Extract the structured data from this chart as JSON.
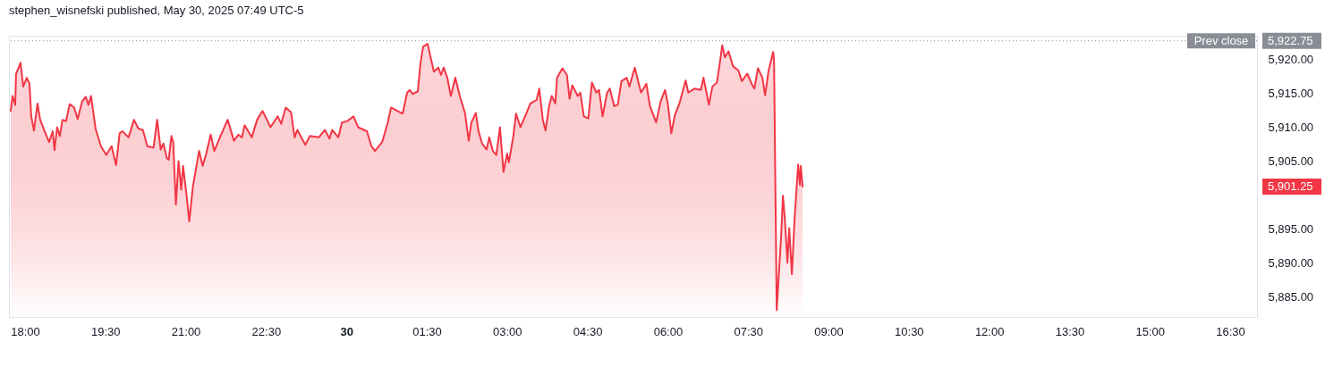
{
  "chart_data": {
    "type": "area",
    "title": "stephen_wisnefski published, May 30, 2025 07:49 UTC-5",
    "x": [
      "2025-05-29T17:44",
      "2025-05-29T17:46",
      "2025-05-29T17:49",
      "2025-05-29T17:50",
      "2025-05-29T17:55",
      "2025-05-29T17:58",
      "2025-05-29T18:02",
      "2025-05-29T18:05",
      "2025-05-29T18:07",
      "2025-05-29T18:10",
      "2025-05-29T18:14",
      "2025-05-29T18:17",
      "2025-05-29T18:22",
      "2025-05-29T18:27",
      "2025-05-29T18:31",
      "2025-05-29T18:33",
      "2025-05-29T18:36",
      "2025-05-29T18:39",
      "2025-05-29T18:42",
      "2025-05-29T18:46",
      "2025-05-29T18:50",
      "2025-05-29T18:55",
      "2025-05-29T18:59",
      "2025-05-29T19:04",
      "2025-05-29T19:08",
      "2025-05-29T19:11",
      "2025-05-29T19:14",
      "2025-05-29T19:19",
      "2025-05-29T19:25",
      "2025-05-29T19:31",
      "2025-05-29T19:37",
      "2025-05-29T19:42",
      "2025-05-29T19:46",
      "2025-05-29T19:49",
      "2025-05-29T19:56",
      "2025-05-29T20:02",
      "2025-05-29T20:07",
      "2025-05-29T20:12",
      "2025-05-29T20:17",
      "2025-05-29T20:24",
      "2025-05-29T20:28",
      "2025-05-29T20:32",
      "2025-05-29T20:35",
      "2025-05-29T20:39",
      "2025-05-29T20:41",
      "2025-05-29T20:44",
      "2025-05-29T20:46",
      "2025-05-29T20:49",
      "2025-05-29T20:52",
      "2025-05-29T20:55",
      "2025-05-29T20:57",
      "2025-05-29T21:01",
      "2025-05-29T21:04",
      "2025-05-29T21:08",
      "2025-05-29T21:13",
      "2025-05-29T21:15",
      "2025-05-29T21:19",
      "2025-05-29T21:23",
      "2025-05-29T21:28",
      "2025-05-29T21:32",
      "2025-05-29T21:39",
      "2025-05-29T21:47",
      "2025-05-29T21:54",
      "2025-05-29T21:59",
      "2025-05-29T22:03",
      "2025-05-29T22:06",
      "2025-05-29T22:14",
      "2025-05-29T22:20",
      "2025-05-29T22:26",
      "2025-05-29T22:31",
      "2025-05-29T22:35",
      "2025-05-29T22:43",
      "2025-05-29T22:47",
      "2025-05-29T22:52",
      "2025-05-29T22:58",
      "2025-05-29T23:02",
      "2025-05-29T23:05",
      "2025-05-29T23:14",
      "2025-05-29T23:19",
      "2025-05-29T23:29",
      "2025-05-29T23:36",
      "2025-05-29T23:41",
      "2025-05-29T23:44",
      "2025-05-29T23:51",
      "2025-05-29T23:55",
      "2025-05-30T00:01",
      "2025-05-30T00:08",
      "2025-05-30T00:13",
      "2025-05-30T00:23",
      "2025-05-30T00:28",
      "2025-05-30T00:32",
      "2025-05-30T00:40",
      "2025-05-30T00:46",
      "2025-05-30T00:50",
      "2025-05-30T01:03",
      "2025-05-30T01:08",
      "2025-05-30T01:11",
      "2025-05-30T01:14",
      "2025-05-30T01:20",
      "2025-05-30T01:23",
      "2025-05-30T01:26",
      "2025-05-30T01:31",
      "2025-05-30T01:35",
      "2025-05-30T01:38",
      "2025-05-30T01:43",
      "2025-05-30T01:46",
      "2025-05-30T01:49",
      "2025-05-30T01:53",
      "2025-05-30T01:57",
      "2025-05-30T02:02",
      "2025-05-30T02:07",
      "2025-05-30T02:13",
      "2025-05-30T02:17",
      "2025-05-30T02:20",
      "2025-05-30T02:25",
      "2025-05-30T02:28",
      "2025-05-30T02:32",
      "2025-05-30T02:37",
      "2025-05-30T02:40",
      "2025-05-30T02:44",
      "2025-05-30T02:48",
      "2025-05-30T02:52",
      "2025-05-30T02:56",
      "2025-05-30T03:00",
      "2025-05-30T03:02",
      "2025-05-30T03:07",
      "2025-05-30T03:10",
      "2025-05-30T03:15",
      "2025-05-30T03:22",
      "2025-05-30T03:26",
      "2025-05-30T03:33",
      "2025-05-30T03:36",
      "2025-05-30T03:40",
      "2025-05-30T03:43",
      "2025-05-30T03:47",
      "2025-05-30T03:50",
      "2025-05-30T03:54",
      "2025-05-30T03:56",
      "2025-05-30T04:02",
      "2025-05-30T04:07",
      "2025-05-30T04:10",
      "2025-05-30T04:13",
      "2025-05-30T04:19",
      "2025-05-30T04:22",
      "2025-05-30T04:26",
      "2025-05-30T04:31",
      "2025-05-30T04:35",
      "2025-05-30T04:40",
      "2025-05-30T04:43",
      "2025-05-30T04:47",
      "2025-05-30T04:52",
      "2025-05-30T04:55",
      "2025-05-30T05:00",
      "2025-05-30T05:04",
      "2025-05-30T05:08",
      "2025-05-30T05:14",
      "2025-05-30T05:17",
      "2025-05-30T05:23",
      "2025-05-30T05:30",
      "2025-05-30T05:36",
      "2025-05-30T05:40",
      "2025-05-30T05:47",
      "2025-05-30T05:52",
      "2025-05-30T05:57",
      "2025-05-30T06:00",
      "2025-05-30T06:04",
      "2025-05-30T06:08",
      "2025-05-30T06:13",
      "2025-05-30T06:20",
      "2025-05-30T06:23",
      "2025-05-30T06:30",
      "2025-05-30T06:37",
      "2025-05-30T06:40",
      "2025-05-30T06:46",
      "2025-05-30T06:50",
      "2025-05-30T06:55",
      "2025-05-30T06:58",
      "2025-05-30T07:01",
      "2025-05-30T07:04",
      "2025-05-30T07:08",
      "2025-05-30T07:13",
      "2025-05-30T07:19",
      "2025-05-30T07:23",
      "2025-05-30T07:29",
      "2025-05-30T07:34",
      "2025-05-30T07:37",
      "2025-05-30T07:41",
      "2025-05-30T07:46",
      "2025-05-30T07:49",
      "2025-05-30T07:53",
      "2025-05-30T07:58",
      "2025-05-30T07:59",
      "2025-05-30T08:02",
      "2025-05-30T08:07",
      "2025-05-30T08:09",
      "2025-05-30T08:11",
      "2025-05-30T08:14",
      "2025-05-30T08:16",
      "2025-05-30T08:19",
      "2025-05-30T08:22",
      "2025-05-30T08:26",
      "2025-05-30T08:28",
      "2025-05-30T08:29",
      "2025-05-30T08:31"
    ],
    "series": [
      {
        "color": "#f23645",
        "values": [
          5912.4,
          5914.6,
          5913.3,
          5917.9,
          5919.5,
          5916.0,
          5917.3,
          5916.4,
          5911.6,
          5909.5,
          5913.5,
          5911.1,
          5909.4,
          5907.8,
          5909.4,
          5906.6,
          5910.0,
          5908.7,
          5911.1,
          5910.9,
          5913.4,
          5912.9,
          5911.2,
          5913.8,
          5914.5,
          5913.3,
          5914.6,
          5909.8,
          5907.2,
          5905.9,
          5907.2,
          5904.4,
          5909.1,
          5909.4,
          5908.5,
          5911.1,
          5909.8,
          5909.6,
          5907.2,
          5907.0,
          5911.1,
          5906.7,
          5907.6,
          5905.4,
          5905.2,
          5908.7,
          5907.8,
          5898.6,
          5905.0,
          5900.8,
          5904.3,
          5899.9,
          5896.1,
          5901.2,
          5905.0,
          5906.5,
          5904.3,
          5906.1,
          5908.9,
          5906.5,
          5908.7,
          5911.1,
          5908.0,
          5908.9,
          5908.5,
          5910.3,
          5908.5,
          5911.1,
          5912.4,
          5911.1,
          5910.0,
          5911.6,
          5910.5,
          5912.9,
          5912.2,
          5908.5,
          5909.6,
          5907.4,
          5908.7,
          5908.5,
          5909.6,
          5908.3,
          5909.6,
          5908.5,
          5910.7,
          5910.9,
          5911.6,
          5910.0,
          5909.4,
          5907.2,
          5906.5,
          5907.8,
          5910.5,
          5912.9,
          5912.0,
          5915.1,
          5915.5,
          5914.9,
          5915.3,
          5919.5,
          5921.9,
          5922.3,
          5919.9,
          5918.2,
          5918.8,
          5917.7,
          5918.8,
          5917.3,
          5914.6,
          5917.3,
          5914.6,
          5912.0,
          5908.0,
          5910.7,
          5912.1,
          5909.4,
          5907.6,
          5906.7,
          5908.5,
          5906.5,
          5905.9,
          5910.0,
          5903.4,
          5906.1,
          5904.8,
          5908.7,
          5912.0,
          5910.0,
          5912.2,
          5913.5,
          5914.0,
          5915.7,
          5911.1,
          5909.5,
          5913.1,
          5914.6,
          5913.5,
          5917.3,
          5918.7,
          5917.7,
          5914.2,
          5916.2,
          5914.6,
          5915.1,
          5911.6,
          5911.3,
          5916.6,
          5915.1,
          5915.5,
          5911.6,
          5915.1,
          5915.7,
          5913.1,
          5913.3,
          5916.8,
          5917.3,
          5916.0,
          5918.8,
          5915.1,
          5916.4,
          5913.1,
          5910.7,
          5913.8,
          5915.5,
          5913.5,
          5909.1,
          5911.8,
          5913.5,
          5916.9,
          5915.1,
          5915.7,
          5915.5,
          5917.3,
          5913.3,
          5916.0,
          5916.6,
          5919.2,
          5922.1,
          5920.3,
          5921.2,
          5919.0,
          5918.4,
          5916.8,
          5917.9,
          5916.4,
          5915.7,
          5918.7,
          5917.3,
          5914.7,
          5918.4,
          5921.1,
          5919.9,
          5883.0,
          5894.0,
          5899.9,
          5896.6,
          5890.0,
          5895.1,
          5888.3,
          5896.4,
          5904.5,
          5901.5,
          5904.3,
          5901.25
        ]
      }
    ],
    "xlim": [
      "2025-05-29T17:42",
      "2025-05-30T17:00"
    ],
    "xticks": [
      {
        "value": "2025-05-29T18:00",
        "label": "18:00"
      },
      {
        "value": "2025-05-29T19:30",
        "label": "19:30"
      },
      {
        "value": "2025-05-29T21:00",
        "label": "21:00"
      },
      {
        "value": "2025-05-29T22:30",
        "label": "22:30"
      },
      {
        "value": "2025-05-30T00:00",
        "label": "30"
      },
      {
        "value": "2025-05-30T01:30",
        "label": "01:30"
      },
      {
        "value": "2025-05-30T03:00",
        "label": "03:00"
      },
      {
        "value": "2025-05-30T04:30",
        "label": "04:30"
      },
      {
        "value": "2025-05-30T06:00",
        "label": "06:00"
      },
      {
        "value": "2025-05-30T07:30",
        "label": "07:30"
      },
      {
        "value": "2025-05-30T09:00",
        "label": "09:00"
      },
      {
        "value": "2025-05-30T10:30",
        "label": "10:30"
      },
      {
        "value": "2025-05-30T12:00",
        "label": "12:00"
      },
      {
        "value": "2025-05-30T13:30",
        "label": "13:30"
      },
      {
        "value": "2025-05-30T15:00",
        "label": "15:00"
      },
      {
        "value": "2025-05-30T16:30",
        "label": "16:30"
      }
    ],
    "ylim": [
      5882,
      5923.5
    ],
    "yticks": [
      {
        "value": 5885,
        "label": "5,885.00"
      },
      {
        "value": 5890,
        "label": "5,890.00"
      },
      {
        "value": 5895,
        "label": "5,895.00"
      },
      {
        "value": 5901.25,
        "label": "5,901.25"
      },
      {
        "value": 5905,
        "label": "5,905.00"
      },
      {
        "value": 5910,
        "label": "5,910.00"
      },
      {
        "value": 5915,
        "label": "5,915.00"
      },
      {
        "value": 5920,
        "label": "5,920.00"
      },
      {
        "value": 5922.75,
        "label": "5,922.75"
      }
    ],
    "ref_lines": [
      {
        "axis": "y",
        "value": 5922.75,
        "label": "Prev close",
        "color": "#8a8d96",
        "line_style": "dotted"
      }
    ]
  }
}
